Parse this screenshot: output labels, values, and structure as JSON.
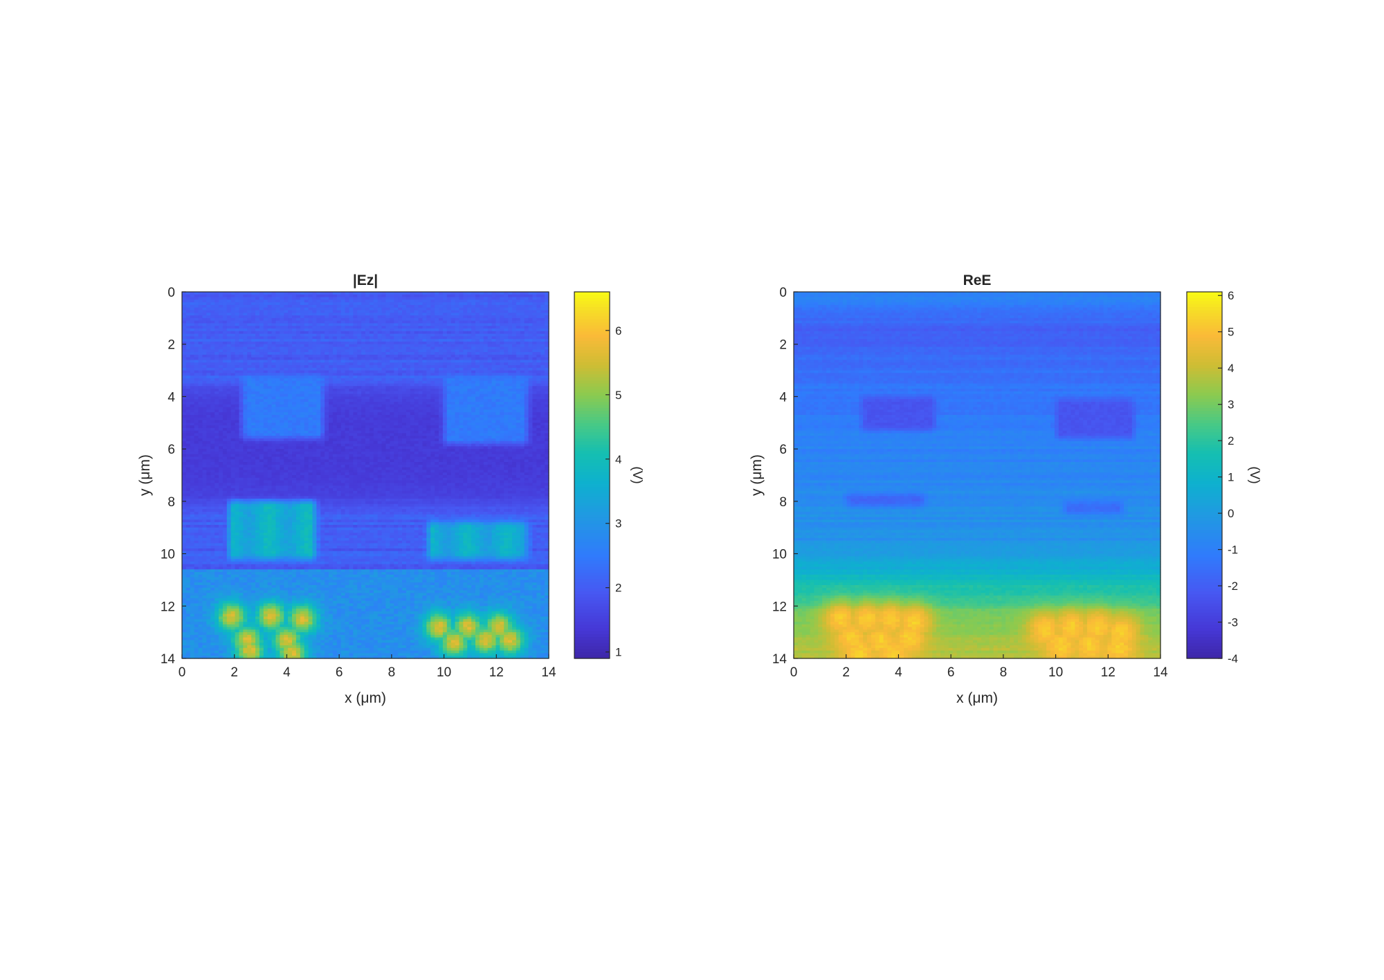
{
  "chart_data": [
    {
      "type": "heatmap",
      "title": "|Ez|",
      "xlabel": "x (μm)",
      "ylabel": "y (μm)",
      "xlim": [
        0,
        14
      ],
      "ylim": [
        0,
        14
      ],
      "y_reversed": true,
      "xticks": [
        "0",
        "2",
        "4",
        "6",
        "8",
        "10",
        "12",
        "14"
      ],
      "yticks": [
        "0",
        "2",
        "4",
        "6",
        "8",
        "10",
        "12",
        "14"
      ],
      "colorbar": {
        "label": "(V)",
        "range": [
          0.9,
          6.6
        ],
        "ticks": [
          "1",
          "2",
          "3",
          "4",
          "5",
          "6"
        ],
        "tick_values": [
          1,
          2,
          3,
          4,
          5,
          6
        ],
        "colormap": "parula"
      },
      "features": {
        "background_level": 2.0,
        "dark_band": {
          "y": [
            3.3,
            8.5
          ],
          "level": 1.4
        },
        "upper_patches": [
          {
            "x": [
              2.3,
              5.4
            ],
            "y": [
              3.2,
              5.6
            ],
            "level": 2.5
          },
          {
            "x": [
              10.0,
              13.2
            ],
            "y": [
              3.2,
              5.8
            ],
            "level": 2.5
          }
        ],
        "middle_rows": [
          {
            "x": [
              1.8,
              5.1
            ],
            "y": [
              8.0,
              10.2
            ],
            "level": 3.3
          },
          {
            "x": [
              9.4,
              13.2
            ],
            "y": [
              8.8,
              10.2
            ],
            "level": 3.2
          }
        ],
        "lower_band": {
          "y": [
            10.6,
            14
          ],
          "level": 2.9
        },
        "hotspots_left": [
          [
            1.9,
            12.4
          ],
          [
            3.4,
            12.4
          ],
          [
            4.6,
            12.5
          ],
          [
            2.5,
            13.3
          ],
          [
            4.0,
            13.3
          ],
          [
            2.6,
            13.7
          ],
          [
            4.2,
            13.8
          ]
        ],
        "hotspots_right": [
          [
            9.8,
            12.8
          ],
          [
            10.9,
            12.8
          ],
          [
            12.1,
            12.8
          ],
          [
            10.4,
            13.4
          ],
          [
            11.6,
            13.3
          ],
          [
            12.5,
            13.3
          ]
        ],
        "hotspot_level": 5.6
      }
    },
    {
      "type": "heatmap",
      "title": "ReE",
      "xlabel": "x (μm)",
      "ylabel": "y (μm)",
      "xlim": [
        0,
        14
      ],
      "ylim": [
        0,
        14
      ],
      "y_reversed": true,
      "xticks": [
        "0",
        "2",
        "4",
        "6",
        "8",
        "10",
        "12",
        "14"
      ],
      "yticks": [
        "0",
        "2",
        "4",
        "6",
        "8",
        "10",
        "12",
        "14"
      ],
      "colorbar": {
        "label": "(V)",
        "range": [
          -4.0,
          6.1
        ],
        "ticks": [
          "-4",
          "-3",
          "-2",
          "-1",
          "0",
          "1",
          "2",
          "3",
          "4",
          "5",
          "6"
        ],
        "tick_values": [
          -4,
          -3,
          -2,
          -1,
          0,
          1,
          2,
          3,
          4,
          5,
          6
        ],
        "colormap": "parula"
      },
      "features": {
        "gradient": [
          [
            0,
            -0.8
          ],
          [
            1.5,
            -2.0
          ],
          [
            3.5,
            -1.4
          ],
          [
            6.0,
            -0.9
          ],
          [
            9.5,
            -0.3
          ],
          [
            10.5,
            0.6
          ],
          [
            11.5,
            2.0
          ],
          [
            12.4,
            3.0
          ],
          [
            13.5,
            3.6
          ],
          [
            14,
            3.8
          ]
        ],
        "darker_patches": [
          {
            "x": [
              2.6,
              5.4
            ],
            "y": [
              4.0,
              5.3
            ],
            "level": -2.3
          },
          {
            "x": [
              10.0,
              13.0
            ],
            "y": [
              4.1,
              5.6
            ],
            "level": -2.3
          },
          {
            "x": [
              2.0,
              5.0
            ],
            "y": [
              7.7,
              8.2
            ],
            "level": -1.8
          },
          {
            "x": [
              10.3,
              12.6
            ],
            "y": [
              8.0,
              8.5
            ],
            "level": -1.6
          }
        ],
        "hotspots_left": [
          [
            1.8,
            12.5
          ],
          [
            2.8,
            12.5
          ],
          [
            3.7,
            12.5
          ],
          [
            4.6,
            12.6
          ],
          [
            2.2,
            13.2
          ],
          [
            3.3,
            13.3
          ],
          [
            4.4,
            13.2
          ],
          [
            2.5,
            13.8
          ],
          [
            3.8,
            13.8
          ]
        ],
        "hotspots_right": [
          [
            9.6,
            12.9
          ],
          [
            10.6,
            12.8
          ],
          [
            11.6,
            12.8
          ],
          [
            12.5,
            13.0
          ],
          [
            10.2,
            13.5
          ],
          [
            11.3,
            13.5
          ],
          [
            12.4,
            13.6
          ]
        ],
        "hotspot_level": 5.3
      }
    }
  ]
}
